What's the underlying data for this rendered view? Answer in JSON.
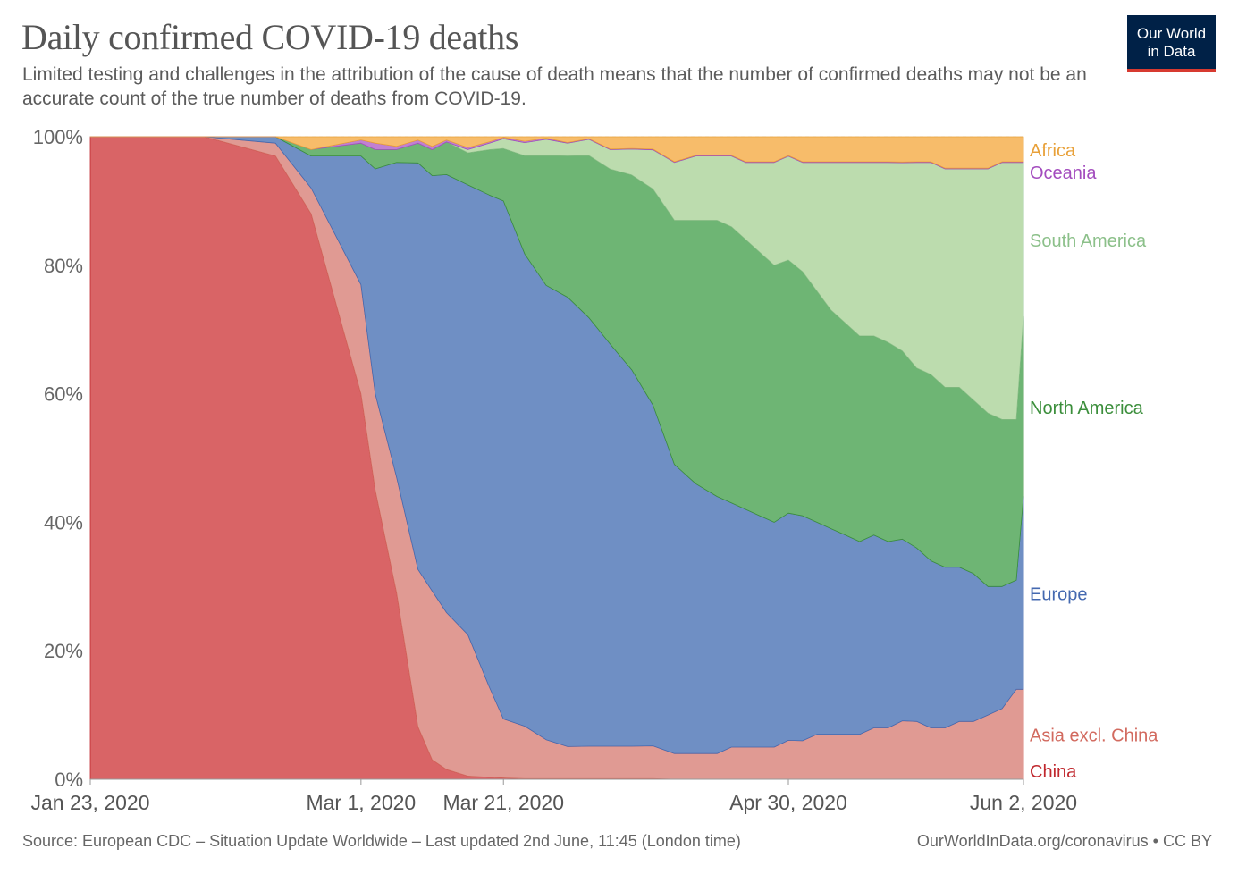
{
  "header": {
    "title": "Daily confirmed COVID-19 deaths",
    "subtitle": "Limited testing and challenges in the attribution of the cause of death means that the number of confirmed deaths may not be an accurate count of the true number of deaths from COVID-19."
  },
  "logo": {
    "line1": "Our World",
    "line2": "in Data",
    "bg": "#002147",
    "accent": "#d73a30"
  },
  "footer": {
    "source": "Source: European CDC – Situation Update Worldwide – Last updated 2nd June, 11:45 (London time)",
    "credit": "OurWorldInData.org/coronavirus • CC BY"
  },
  "chart_data": {
    "type": "area",
    "stacked": true,
    "normalized": true,
    "x": [
      "2020-01-23",
      "2020-02-08",
      "2020-02-18",
      "2020-02-23",
      "2020-03-01",
      "2020-03-03",
      "2020-03-06",
      "2020-03-09",
      "2020-03-11",
      "2020-03-13",
      "2020-03-16",
      "2020-03-19",
      "2020-03-21",
      "2020-03-24",
      "2020-03-27",
      "2020-03-30",
      "2020-04-02",
      "2020-04-05",
      "2020-04-08",
      "2020-04-11",
      "2020-04-14",
      "2020-04-17",
      "2020-04-20",
      "2020-04-22",
      "2020-04-24",
      "2020-04-26",
      "2020-04-28",
      "2020-04-30",
      "2020-05-02",
      "2020-05-04",
      "2020-05-06",
      "2020-05-08",
      "2020-05-10",
      "2020-05-12",
      "2020-05-14",
      "2020-05-16",
      "2020-05-18",
      "2020-05-20",
      "2020-05-22",
      "2020-05-24",
      "2020-05-26",
      "2020-05-28",
      "2020-05-30",
      "2020-06-01",
      "2020-06-02"
    ],
    "x_tick_labels": [
      "Jan 23, 2020",
      "Mar 1, 2020",
      "Mar 21, 2020",
      "Apr 30, 2020",
      "Jun 2, 2020"
    ],
    "x_tick_dates": [
      "2020-01-23",
      "2020-03-01",
      "2020-03-21",
      "2020-04-30",
      "2020-06-02"
    ],
    "y_tick_labels": [
      "0%",
      "20%",
      "40%",
      "60%",
      "80%",
      "100%"
    ],
    "ylim": [
      0,
      100
    ],
    "y_unit": "%",
    "grid": "horizontal-dashed",
    "legend": "right, inline labels",
    "series": [
      {
        "name": "China",
        "color": "#c0282e",
        "fill": "#d96466",
        "values": [
          100,
          100,
          97,
          88,
          60,
          45,
          29,
          8,
          3,
          1.5,
          0.5,
          0.3,
          0.2,
          0.1,
          0.1,
          0.1,
          0.1,
          0.1,
          0.1,
          0.1,
          0,
          0,
          0,
          0,
          0,
          0,
          0,
          0,
          0,
          0,
          0,
          0,
          0,
          0,
          0,
          0,
          0,
          0,
          0,
          0,
          0,
          0,
          0,
          0,
          0
        ]
      },
      {
        "name": "Asia excl. China",
        "color": "#d26a5f",
        "fill": "#e09a93",
        "values": [
          0,
          0,
          2,
          4,
          17,
          15,
          18,
          24,
          26,
          24,
          22,
          14,
          9,
          8,
          6,
          5,
          5,
          5,
          5,
          5,
          4,
          4,
          4,
          5,
          5,
          5,
          5,
          6,
          6,
          7,
          7,
          7,
          7,
          8,
          8,
          9,
          9,
          8,
          8,
          9,
          9,
          10,
          11,
          14,
          14
        ]
      },
      {
        "name": "Europe",
        "color": "#4469b0",
        "fill": "#6f8fc4",
        "values": [
          0,
          0,
          1,
          5,
          20,
          35,
          49,
          62,
          64,
          67,
          70,
          76,
          79,
          72,
          70,
          70,
          66,
          62,
          58,
          52,
          45,
          42,
          40,
          38,
          37,
          36,
          35,
          35,
          35,
          33,
          32,
          31,
          30,
          30,
          29,
          28,
          27,
          26,
          25,
          24,
          23,
          20,
          19,
          17,
          30
        ]
      },
      {
        "name": "North America",
        "color": "#3b8e3b",
        "fill": "#6eb574",
        "values": [
          0,
          0,
          0,
          1,
          2,
          3,
          2,
          3,
          4,
          5,
          5,
          7,
          8,
          15,
          20,
          22,
          25,
          27,
          30,
          33,
          38,
          41,
          43,
          43,
          42,
          41,
          40,
          39,
          38,
          36,
          34,
          33,
          32,
          31,
          31,
          29,
          28,
          29,
          28,
          28,
          27,
          27,
          26,
          25,
          28
        ]
      },
      {
        "name": "South America",
        "color": "#8cc08a",
        "fill": "#bcdcae",
        "values": [
          0,
          0,
          0,
          0,
          0,
          0,
          0,
          0,
          0,
          0,
          0.5,
          1,
          1.5,
          2,
          2.5,
          2,
          2.5,
          3,
          4,
          6,
          9,
          10,
          10,
          11,
          12,
          14,
          16,
          16,
          17,
          20,
          23,
          25,
          27,
          27,
          28,
          29,
          32,
          33,
          34,
          34,
          36,
          38,
          40,
          40,
          24
        ]
      },
      {
        "name": "Oceania",
        "color": "#a34cbe",
        "fill": "#c180d2",
        "values": [
          0,
          0,
          0,
          0,
          0.5,
          1,
          0.5,
          0.5,
          0.5,
          0.3,
          0.3,
          0.2,
          0.2,
          0.2,
          0.2,
          0.1,
          0.1,
          0.1,
          0.1,
          0.1,
          0.1,
          0.1,
          0.1,
          0.1,
          0.1,
          0.1,
          0.1,
          0.1,
          0.1,
          0.1,
          0.1,
          0.1,
          0.1,
          0.1,
          0.1,
          0.1,
          0.1,
          0.1,
          0.1,
          0.1,
          0.1,
          0.1,
          0.1,
          0.1,
          0.1
        ]
      },
      {
        "name": "Africa",
        "color": "#e8a038",
        "fill": "#f7bc6a",
        "values": [
          0,
          0,
          0,
          2,
          0.5,
          1,
          1.5,
          0.5,
          1.5,
          0.5,
          1.7,
          0.8,
          0.1,
          0.7,
          0.2,
          0.9,
          0.3,
          1.9,
          1.8,
          1.9,
          3.9,
          2.9,
          2.9,
          2.9,
          3.9,
          3.9,
          3.9,
          2.9,
          3.9,
          3.9,
          3.9,
          3.9,
          3.9,
          3.9,
          3.9,
          3.9,
          3.9,
          3.9,
          4.9,
          4.9,
          4.9,
          4.9,
          3.9,
          3.9,
          3.9
        ]
      }
    ]
  }
}
